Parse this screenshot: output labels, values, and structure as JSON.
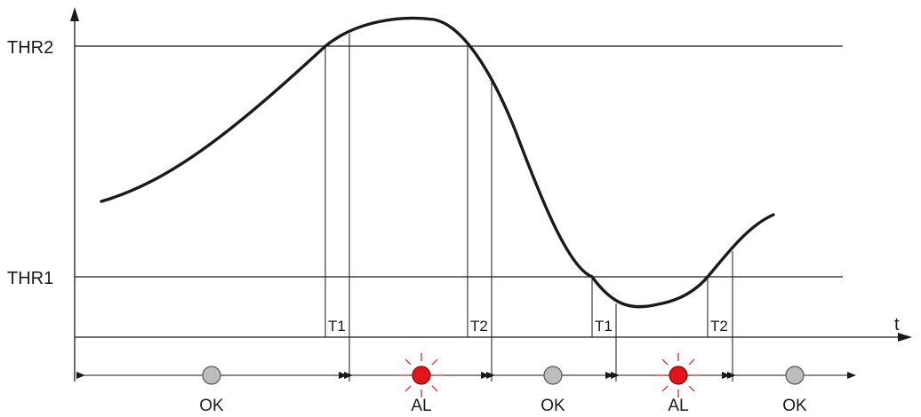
{
  "axis": {
    "time_label": "t"
  },
  "thresholds": [
    {
      "label": "THR2"
    },
    {
      "label": "THR1"
    }
  ],
  "timer_labels": [
    "T1",
    "T2",
    "T1",
    "T2"
  ],
  "states": [
    {
      "label": "OK",
      "status": "off"
    },
    {
      "label": "AL",
      "status": "alarm"
    },
    {
      "label": "OK",
      "status": "off"
    },
    {
      "label": "AL",
      "status": "alarm"
    },
    {
      "label": "OK",
      "status": "off"
    }
  ],
  "colors": {
    "line": "#1a1a1a",
    "led_off": "#bdbdbd",
    "led_alarm": "#e3151b"
  },
  "icons": {
    "led_off": "grey-indicator-icon",
    "led_alarm": "red-flashing-indicator-icon",
    "arrow": "double-arrow-icon"
  }
}
